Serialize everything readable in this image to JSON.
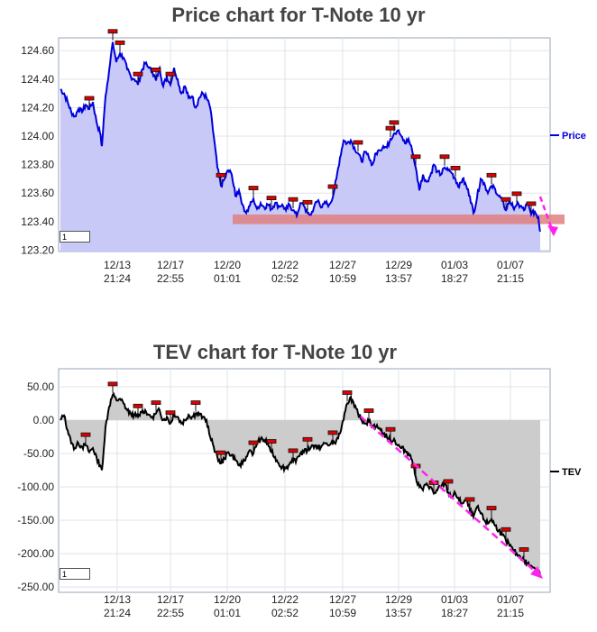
{
  "chart_data": [
    {
      "type": "area",
      "title": "Price chart for T-Note 10 yr",
      "series": [
        {
          "name": "Price"
        }
      ],
      "yticks": [
        "124.60",
        "124.40",
        "124.20",
        "124.00",
        "123.80",
        "123.60",
        "123.40",
        "123.20"
      ],
      "ylim": [
        123.19,
        124.69
      ],
      "xticks": [
        [
          "12/13",
          "21:24"
        ],
        [
          "12/17",
          "22:55"
        ],
        [
          "12/20",
          "01:01"
        ],
        [
          "12/22",
          "02:52"
        ],
        [
          "12/27",
          "10:59"
        ],
        [
          "12/29",
          "13:57"
        ],
        [
          "01/03",
          "18:27"
        ],
        [
          "01/07",
          "21:15"
        ]
      ],
      "input_value": "1",
      "colors": {
        "line": "#0000dd",
        "fill": "#c9c9f7",
        "band": "#e08080",
        "arrow": "#ff22ee"
      },
      "support_band": [
        123.42,
        123.45
      ],
      "points": [
        [
          0,
          124.33
        ],
        [
          4,
          124.3
        ],
        [
          8,
          124.24
        ],
        [
          12,
          124.17
        ],
        [
          16,
          124.14
        ],
        [
          20,
          124.19
        ],
        [
          24,
          124.17
        ],
        [
          28,
          124.22
        ],
        [
          32,
          124.19
        ],
        [
          36,
          124.24
        ],
        [
          40,
          124.1
        ],
        [
          44,
          124.02
        ],
        [
          46,
          123.93
        ],
        [
          50,
          124.28
        ],
        [
          54,
          124.46
        ],
        [
          58,
          124.66
        ],
        [
          62,
          124.52
        ],
        [
          66,
          124.58
        ],
        [
          70,
          124.55
        ],
        [
          74,
          124.47
        ],
        [
          78,
          124.42
        ],
        [
          82,
          124.4
        ],
        [
          86,
          124.36
        ],
        [
          90,
          124.46
        ],
        [
          94,
          124.51
        ],
        [
          98,
          124.48
        ],
        [
          102,
          124.45
        ],
        [
          106,
          124.39
        ],
        [
          110,
          124.48
        ],
        [
          114,
          124.35
        ],
        [
          118,
          124.42
        ],
        [
          122,
          124.36
        ],
        [
          126,
          124.48
        ],
        [
          130,
          124.4
        ],
        [
          134,
          124.3
        ],
        [
          138,
          124.35
        ],
        [
          142,
          124.27
        ],
        [
          146,
          124.28
        ],
        [
          150,
          124.2
        ],
        [
          154,
          124.27
        ],
        [
          158,
          124.3
        ],
        [
          162,
          124.27
        ],
        [
          166,
          124.2
        ],
        [
          170,
          124.0
        ],
        [
          174,
          123.78
        ],
        [
          178,
          123.65
        ],
        [
          182,
          123.7
        ],
        [
          186,
          123.76
        ],
        [
          190,
          123.73
        ],
        [
          194,
          123.58
        ],
        [
          198,
          123.62
        ],
        [
          202,
          123.52
        ],
        [
          206,
          123.46
        ],
        [
          210,
          123.51
        ],
        [
          214,
          123.56
        ],
        [
          218,
          123.49
        ],
        [
          222,
          123.53
        ],
        [
          226,
          123.5
        ],
        [
          230,
          123.52
        ],
        [
          234,
          123.49
        ],
        [
          238,
          123.53
        ],
        [
          242,
          123.51
        ],
        [
          246,
          123.52
        ],
        [
          250,
          123.48
        ],
        [
          254,
          123.52
        ],
        [
          258,
          123.48
        ],
        [
          262,
          123.44
        ],
        [
          266,
          123.53
        ],
        [
          270,
          123.51
        ],
        [
          274,
          123.46
        ],
        [
          278,
          123.45
        ],
        [
          282,
          123.52
        ],
        [
          286,
          123.55
        ],
        [
          290,
          123.5
        ],
        [
          294,
          123.53
        ],
        [
          298,
          123.52
        ],
        [
          302,
          123.57
        ],
        [
          306,
          123.7
        ],
        [
          310,
          123.85
        ],
        [
          314,
          123.97
        ],
        [
          318,
          123.95
        ],
        [
          322,
          123.97
        ],
        [
          326,
          123.92
        ],
        [
          330,
          123.88
        ],
        [
          334,
          123.82
        ],
        [
          338,
          123.89
        ],
        [
          342,
          123.85
        ],
        [
          346,
          123.8
        ],
        [
          350,
          123.88
        ],
        [
          354,
          123.9
        ],
        [
          358,
          123.93
        ],
        [
          362,
          123.92
        ],
        [
          366,
          123.98
        ],
        [
          370,
          124.02
        ],
        [
          374,
          124.04
        ],
        [
          378,
          124.0
        ],
        [
          382,
          123.95
        ],
        [
          386,
          123.98
        ],
        [
          390,
          123.9
        ],
        [
          394,
          123.78
        ],
        [
          398,
          123.62
        ],
        [
          402,
          123.73
        ],
        [
          406,
          123.68
        ],
        [
          410,
          123.72
        ],
        [
          414,
          123.8
        ],
        [
          418,
          123.75
        ],
        [
          422,
          123.73
        ],
        [
          426,
          123.78
        ],
        [
          430,
          123.76
        ],
        [
          434,
          123.74
        ],
        [
          438,
          123.7
        ],
        [
          442,
          123.64
        ],
        [
          446,
          123.7
        ],
        [
          450,
          123.65
        ],
        [
          454,
          123.58
        ],
        [
          458,
          123.46
        ],
        [
          462,
          123.57
        ],
        [
          466,
          123.7
        ],
        [
          470,
          123.67
        ],
        [
          474,
          123.6
        ],
        [
          478,
          123.65
        ],
        [
          482,
          123.63
        ],
        [
          486,
          123.58
        ],
        [
          490,
          123.55
        ],
        [
          494,
          123.48
        ],
        [
          498,
          123.55
        ],
        [
          502,
          123.5
        ],
        [
          506,
          123.52
        ],
        [
          510,
          123.51
        ],
        [
          514,
          123.48
        ],
        [
          518,
          123.53
        ],
        [
          522,
          123.45
        ],
        [
          526,
          123.47
        ],
        [
          530,
          123.43
        ],
        [
          532,
          123.33
        ]
      ]
    },
    {
      "type": "area",
      "title": "TEV chart for T-Note 10 yr",
      "series": [
        {
          "name": "TEV"
        }
      ],
      "yticks": [
        "50.00",
        "0.00",
        "-50.00",
        "-100.00",
        "-150.00",
        "-200.00",
        "-250.00"
      ],
      "ylim": [
        -258,
        77
      ],
      "xticks": [
        [
          "12/13",
          "21:24"
        ],
        [
          "12/17",
          "22:55"
        ],
        [
          "12/20",
          "01:01"
        ],
        [
          "12/22",
          "02:52"
        ],
        [
          "12/27",
          "10:59"
        ],
        [
          "12/29",
          "13:57"
        ],
        [
          "01/03",
          "18:27"
        ],
        [
          "01/07",
          "21:15"
        ]
      ],
      "input_value": "1",
      "colors": {
        "line": "#000000",
        "fill": "#cccccc",
        "arrow": "#ff22ee"
      },
      "points": [
        [
          0,
          0
        ],
        [
          4,
          7
        ],
        [
          8,
          -15
        ],
        [
          12,
          -35
        ],
        [
          16,
          -42
        ],
        [
          20,
          -35
        ],
        [
          24,
          -40
        ],
        [
          28,
          -38
        ],
        [
          32,
          -48
        ],
        [
          36,
          -42
        ],
        [
          40,
          -55
        ],
        [
          44,
          -68
        ],
        [
          46,
          -75
        ],
        [
          50,
          -10
        ],
        [
          54,
          20
        ],
        [
          58,
          38
        ],
        [
          62,
          30
        ],
        [
          66,
          32
        ],
        [
          70,
          25
        ],
        [
          74,
          15
        ],
        [
          78,
          10
        ],
        [
          82,
          8
        ],
        [
          86,
          5
        ],
        [
          90,
          12
        ],
        [
          94,
          15
        ],
        [
          98,
          8
        ],
        [
          102,
          5
        ],
        [
          106,
          10
        ],
        [
          110,
          15
        ],
        [
          114,
          0
        ],
        [
          118,
          5
        ],
        [
          122,
          -5
        ],
        [
          126,
          10
        ],
        [
          130,
          5
        ],
        [
          134,
          -5
        ],
        [
          138,
          0
        ],
        [
          142,
          8
        ],
        [
          146,
          5
        ],
        [
          150,
          10
        ],
        [
          154,
          8
        ],
        [
          158,
          5
        ],
        [
          162,
          0
        ],
        [
          166,
          -25
        ],
        [
          170,
          -40
        ],
        [
          174,
          -55
        ],
        [
          178,
          -65
        ],
        [
          182,
          -58
        ],
        [
          186,
          -48
        ],
        [
          190,
          -52
        ],
        [
          194,
          -60
        ],
        [
          198,
          -68
        ],
        [
          202,
          -65
        ],
        [
          206,
          -55
        ],
        [
          210,
          -45
        ],
        [
          214,
          -50
        ],
        [
          218,
          -35
        ],
        [
          222,
          -28
        ],
        [
          226,
          -30
        ],
        [
          230,
          -35
        ],
        [
          234,
          -48
        ],
        [
          238,
          -55
        ],
        [
          242,
          -65
        ],
        [
          246,
          -70
        ],
        [
          250,
          -72
        ],
        [
          254,
          -66
        ],
        [
          258,
          -62
        ],
        [
          262,
          -58
        ],
        [
          266,
          -50
        ],
        [
          270,
          -48
        ],
        [
          274,
          -45
        ],
        [
          278,
          -40
        ],
        [
          282,
          -38
        ],
        [
          286,
          -42
        ],
        [
          290,
          -38
        ],
        [
          294,
          -35
        ],
        [
          298,
          -38
        ],
        [
          302,
          -35
        ],
        [
          306,
          -30
        ],
        [
          310,
          -20
        ],
        [
          314,
          0
        ],
        [
          318,
          25
        ],
        [
          322,
          35
        ],
        [
          326,
          20
        ],
        [
          330,
          10
        ],
        [
          334,
          0
        ],
        [
          338,
          -5
        ],
        [
          342,
          -2
        ],
        [
          346,
          -8
        ],
        [
          350,
          -10
        ],
        [
          354,
          -12
        ],
        [
          358,
          -20
        ],
        [
          362,
          -25
        ],
        [
          366,
          -30
        ],
        [
          370,
          -28
        ],
        [
          374,
          -38
        ],
        [
          378,
          -42
        ],
        [
          382,
          -45
        ],
        [
          386,
          -50
        ],
        [
          390,
          -60
        ],
        [
          394,
          -85
        ],
        [
          398,
          -100
        ],
        [
          402,
          -105
        ],
        [
          406,
          -95
        ],
        [
          410,
          -100
        ],
        [
          414,
          -110
        ],
        [
          418,
          -105
        ],
        [
          422,
          -100
        ],
        [
          426,
          -95
        ],
        [
          430,
          -108
        ],
        [
          434,
          -115
        ],
        [
          438,
          -110
        ],
        [
          442,
          -120
        ],
        [
          446,
          -125
        ],
        [
          450,
          -118
        ],
        [
          454,
          -135
        ],
        [
          458,
          -145
        ],
        [
          462,
          -130
        ],
        [
          466,
          -140
        ],
        [
          470,
          -150
        ],
        [
          474,
          -155
        ],
        [
          478,
          -148
        ],
        [
          482,
          -158
        ],
        [
          486,
          -165
        ],
        [
          490,
          -172
        ],
        [
          494,
          -180
        ],
        [
          498,
          -188
        ],
        [
          502,
          -195
        ],
        [
          506,
          -200
        ],
        [
          510,
          -205
        ],
        [
          514,
          -210
        ],
        [
          518,
          -215
        ],
        [
          522,
          -218
        ],
        [
          526,
          -222
        ],
        [
          530,
          -225
        ],
        [
          532,
          -230
        ]
      ]
    }
  ]
}
